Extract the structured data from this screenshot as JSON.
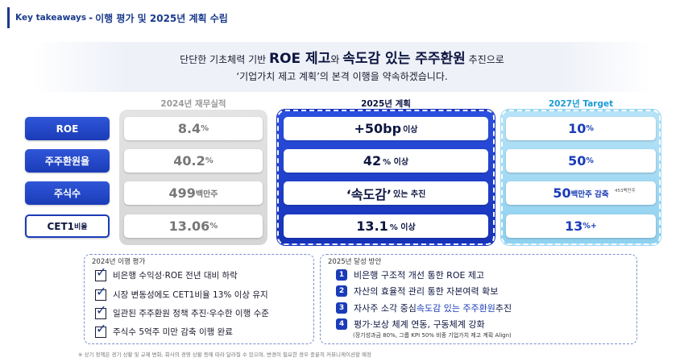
{
  "header": {
    "tag": "Key takeaways",
    "separator": "-",
    "title": "이행 평가 및 2025년 계획 수립"
  },
  "banner": {
    "line1_pre": "단단한 기초체력 기반",
    "line1_big1": "ROE 제고",
    "line1_mid": "와",
    "line1_big2": "속도감 있는 주주환원",
    "line1_post": "추진으로",
    "line2": "‘기업가치 제고 계획’의 본격 이행을 약속하겠습니다."
  },
  "columns": {
    "col2024": "2024년 재무실적",
    "col2025": "2025년 계획",
    "col2027": "2027년 Target"
  },
  "rows": [
    {
      "label": "ROE",
      "label_sub": "",
      "v2024": "8.4",
      "u2024": "%",
      "v2025": "+50bp",
      "u2025": "이상",
      "v2027": "10",
      "u2027": "%"
    },
    {
      "label": "주주환원율",
      "label_sub": "",
      "v2024": "40.2",
      "u2024": "%",
      "v2025": "42",
      "u2025": "% 이상",
      "v2027": "50",
      "u2027": "%"
    },
    {
      "label": "주식수",
      "label_sub": "",
      "v2024": "499",
      "u2024": "백만주",
      "v2025": "‘속도감’",
      "u2025": "있는 추진",
      "v2027": "50",
      "u2027": "백만주 감축",
      "note2027": "453백만주"
    },
    {
      "label": "CET1",
      "label_sub": "비율",
      "v2024": "13.06",
      "u2024": "%",
      "v2025": "13.1",
      "u2025": "% 이상",
      "v2027": "13",
      "u2027": "%+"
    }
  ],
  "eval_box": {
    "title": "2024년 이행 평가",
    "items": [
      "비은행 수익성·ROE 전년 대비 하락",
      "시장 변동성에도 CET1비율 13% 이상 유지",
      "일관된 주주환원 정책 추진·우수한 이행 수준",
      "주식수 5억주 미만 감축 이행 완료"
    ]
  },
  "plan_box": {
    "title": "2025년 달성 방안",
    "items": [
      {
        "num": "1",
        "pre": "비은행 구조적 개선 통한 ROE 제고",
        "hl": "",
        "post": ""
      },
      {
        "num": "2",
        "pre": "자산의 효율적 관리 통한 자본여력 확보",
        "hl": "",
        "post": ""
      },
      {
        "num": "3",
        "pre": "자사주 소각 중심 ",
        "hl": "속도감 있는 주주환원",
        "post": " 추진"
      },
      {
        "num": "4",
        "pre": "평가·보상 체계 연동, 구동체계 강화",
        "hl": "",
        "post": ""
      }
    ],
    "note": "(장기성과금 80%, 그룹 KPI 50% 비중 기업가치 제고 계획 Align)"
  },
  "footnote": "※ 상기 정책은 경기 상황 및 규제 변화, 회사의 경영 상황 등에 따라 달라질 수 있으며, 변경이 필요한 경우 충분히 커뮤니케이션할 예정",
  "colors": {
    "brand_navy": "#1a3a8c",
    "plan_blue": "#1b3cb8",
    "target_sky": "#8fd1f0",
    "actual_grey": "#d6d6d6"
  }
}
